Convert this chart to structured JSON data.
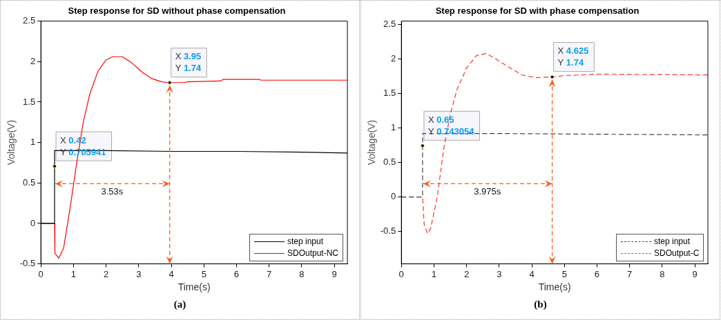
{
  "chart_data": [
    {
      "type": "line",
      "title": "Step response for SD without phase compensation",
      "xlabel": "Time(s)",
      "ylabel": "Voltage(V)",
      "xlim": [
        0,
        9.4
      ],
      "xticks": [
        0,
        1,
        2,
        3,
        4,
        5,
        6,
        7,
        8,
        9
      ],
      "ylim": [
        -0.5,
        2.5
      ],
      "yticks": [
        -0.5,
        0,
        0.5,
        1,
        1.5,
        2,
        2.5
      ],
      "grid": false,
      "legend": "bottom right",
      "marker": "none",
      "series": [
        {
          "name": "step input",
          "color": "#000000",
          "line_style": "solid",
          "x": [
            0,
            0.42,
            0.42,
            2,
            4,
            6,
            8,
            9.4
          ],
          "values": [
            0,
            0,
            0.9,
            0.9,
            0.89,
            0.89,
            0.88,
            0.87
          ]
        },
        {
          "name": "SDOutput-NC",
          "color": "#ff0000",
          "line_style": "solid",
          "x": [
            0,
            0.42,
            0.43,
            0.55,
            0.7,
            0.9,
            1.1,
            1.3,
            1.5,
            1.75,
            2,
            2.2,
            2.5,
            2.8,
            3.1,
            3.4,
            3.7,
            3.95,
            4.4,
            4.5,
            5.5,
            5.6,
            6.7,
            6.75,
            9.4
          ],
          "values": [
            0,
            0,
            -0.37,
            -0.43,
            -0.3,
            0.2,
            0.75,
            1.25,
            1.6,
            1.88,
            2.02,
            2.06,
            2.06,
            1.98,
            1.87,
            1.79,
            1.75,
            1.74,
            1.74,
            1.75,
            1.76,
            1.78,
            1.78,
            1.77,
            1.77
          ]
        }
      ],
      "annotations": [
        {
          "text": "X 0.42\nY 0.705941",
          "x": 0.42,
          "y": 0.705941
        },
        {
          "text": "X 3.95\nY 1.74",
          "x": 3.95,
          "y": 1.74
        },
        "3.53s",
        "(a)"
      ]
    },
    {
      "type": "line",
      "title": "Step response for SD with phase compensation",
      "xlabel": "Time(s)",
      "ylabel": "Voltage(V)",
      "xlim": [
        0,
        9.4
      ],
      "xticks": [
        0,
        1,
        2,
        3,
        4,
        5,
        6,
        7,
        8,
        9
      ],
      "ylim": [
        -0.97,
        2.55
      ],
      "yticks": [
        -0.5,
        0,
        0.5,
        1,
        1.5,
        2,
        2.5
      ],
      "grid": false,
      "legend": "bottom right",
      "marker": "none",
      "series": [
        {
          "name": "step input",
          "color": "#444444",
          "line_style": "dashed",
          "x": [
            0,
            0.65,
            0.65,
            3,
            6,
            9.4
          ],
          "values": [
            0,
            0,
            0.92,
            0.92,
            0.91,
            0.9
          ]
        },
        {
          "name": "SDOutput-C",
          "color": "#ff3030",
          "line_style": "dashed",
          "x": [
            0,
            0.65,
            0.7,
            0.8,
            0.9,
            1.1,
            1.3,
            1.5,
            1.7,
            2,
            2.3,
            2.6,
            2.9,
            3.3,
            3.7,
            4.1,
            4.625,
            5,
            6,
            9.4
          ],
          "values": [
            0,
            0,
            -0.4,
            -0.53,
            -0.45,
            0,
            0.7,
            1.2,
            1.55,
            1.87,
            2.05,
            2.08,
            2,
            1.88,
            1.77,
            1.73,
            1.74,
            1.76,
            1.78,
            1.77
          ]
        }
      ],
      "annotations": [
        {
          "text": "X 0.65\nY 0.743054",
          "x": 0.65,
          "y": 0.743054
        },
        {
          "text": "X 4.625\nY 1.74",
          "x": 4.625,
          "y": 1.74
        },
        "3.975s",
        "(b)"
      ]
    }
  ]
}
